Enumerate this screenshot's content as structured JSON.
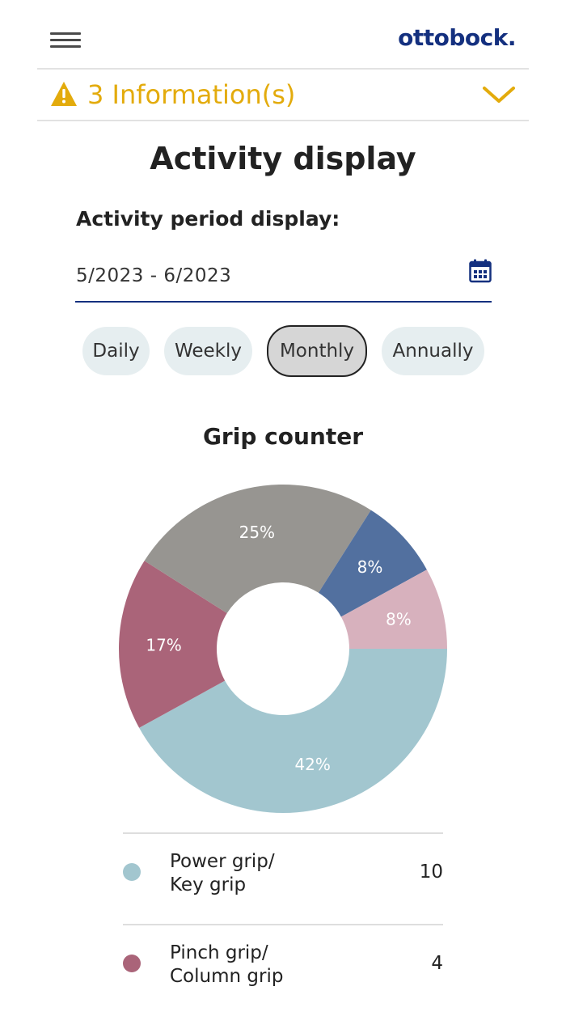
{
  "header": {
    "logo": "ottobock."
  },
  "info": {
    "text": "3 Information(s)"
  },
  "page": {
    "title": "Activity display",
    "period_label": "Activity period display:",
    "date_range": "5/2023 - 6/2023"
  },
  "periods": [
    {
      "label": "Daily",
      "active": false
    },
    {
      "label": "Weekly",
      "active": false
    },
    {
      "label": "Monthly",
      "active": true
    },
    {
      "label": "Annually",
      "active": false
    }
  ],
  "chart_data": {
    "type": "pie",
    "title": "Grip counter",
    "slices": [
      {
        "label": "42%",
        "value": 42,
        "color": "#a2c6cf"
      },
      {
        "label": "17%",
        "value": 17,
        "color": "#aa6479"
      },
      {
        "label": "25%",
        "value": 25,
        "color": "#979591"
      },
      {
        "label": "8%",
        "value": 8,
        "color": "#52709f"
      },
      {
        "label": "8%",
        "value": 8,
        "color": "#d7b1bd"
      }
    ]
  },
  "legend": [
    {
      "name": "Power grip/\nKey grip",
      "count": "10",
      "color": "#a2c6cf"
    },
    {
      "name": "Pinch grip/\nColumn grip",
      "count": "4",
      "color": "#aa6479"
    }
  ],
  "colors": {
    "brand": "#14307f",
    "warning": "#e3ab0c"
  },
  "icons": [
    "menu-icon",
    "warning-icon",
    "chevron-down-icon",
    "calendar-icon"
  ]
}
